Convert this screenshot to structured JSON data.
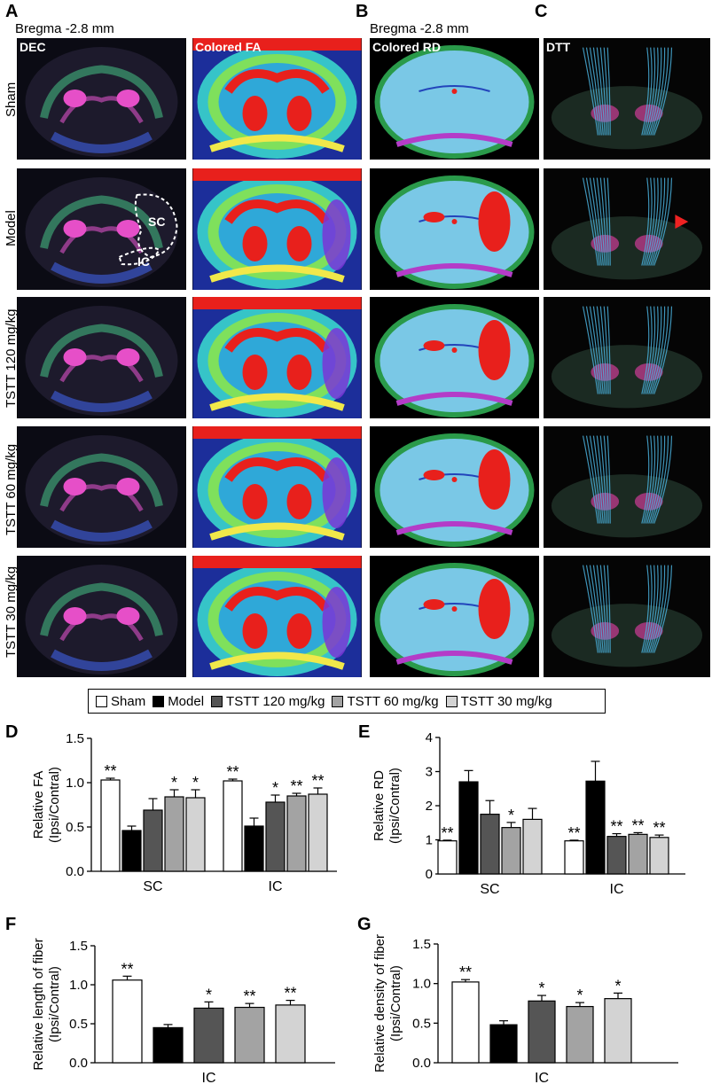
{
  "panels": {
    "A": "A",
    "B": "B",
    "C": "C",
    "D": "D",
    "E": "E",
    "F": "F",
    "G": "G"
  },
  "bregma_a": "Bregma -2.8 mm",
  "bregma_b": "Bregma -2.8 mm",
  "image_labels": {
    "dec": "DEC",
    "fa": "Colored FA",
    "rd": "Colored RD",
    "dtt": "DTT",
    "sc": "SC",
    "ic": "IC"
  },
  "rows": [
    "Sham",
    "Model",
    "TSTT 120 mg/kg",
    "TSTT 60 mg/kg",
    "TSTT 30 mg/kg"
  ],
  "legend": [
    {
      "label": "Sham",
      "color": "#ffffff"
    },
    {
      "label": "Model",
      "color": "#000000"
    },
    {
      "label": "TSTT 120 mg/kg",
      "color": "#555555"
    },
    {
      "label": "TSTT 60 mg/kg",
      "color": "#a3a3a3"
    },
    {
      "label": "TSTT 30 mg/kg",
      "color": "#d3d3d3"
    }
  ],
  "chart_data": [
    {
      "id": "D",
      "type": "bar",
      "ylabel": "Relative FA\n(Ipsi/Contral)",
      "ylim": [
        0,
        1.5
      ],
      "yticks": [
        "0.0",
        "0.5",
        "1.0",
        "1.5"
      ],
      "categories": [
        "SC",
        "IC"
      ],
      "series": [
        {
          "name": "Sham",
          "values": [
            1.03,
            1.02
          ],
          "errors": [
            0.02,
            0.02
          ],
          "sig": [
            "**",
            "**"
          ]
        },
        {
          "name": "Model",
          "values": [
            0.46,
            0.51
          ],
          "errors": [
            0.05,
            0.09
          ],
          "sig": [
            "",
            ""
          ]
        },
        {
          "name": "TSTT 120 mg/kg",
          "values": [
            0.69,
            0.78
          ],
          "errors": [
            0.13,
            0.08
          ],
          "sig": [
            "",
            "*"
          ]
        },
        {
          "name": "TSTT 60 mg/kg",
          "values": [
            0.84,
            0.85
          ],
          "errors": [
            0.08,
            0.03
          ],
          "sig": [
            "*",
            "**"
          ]
        },
        {
          "name": "TSTT 30 mg/kg",
          "values": [
            0.83,
            0.87
          ],
          "errors": [
            0.09,
            0.07
          ],
          "sig": [
            "*",
            "**"
          ]
        }
      ]
    },
    {
      "id": "E",
      "type": "bar",
      "ylabel": "Relative RD\n(Ipsi/Contral)",
      "ylim": [
        0,
        4
      ],
      "yticks": [
        "0",
        "1",
        "2",
        "3",
        "4"
      ],
      "categories": [
        "SC",
        "IC"
      ],
      "series": [
        {
          "name": "Sham",
          "values": [
            0.97,
            0.97
          ],
          "errors": [
            0.02,
            0.02
          ],
          "sig": [
            "**",
            "**"
          ]
        },
        {
          "name": "Model",
          "values": [
            2.7,
            2.72
          ],
          "errors": [
            0.33,
            0.58
          ],
          "sig": [
            "",
            ""
          ]
        },
        {
          "name": "TSTT 120 mg/kg",
          "values": [
            1.75,
            1.1
          ],
          "errors": [
            0.4,
            0.08
          ],
          "sig": [
            "",
            "**"
          ]
        },
        {
          "name": "TSTT 60 mg/kg",
          "values": [
            1.36,
            1.16
          ],
          "errors": [
            0.15,
            0.05
          ],
          "sig": [
            "*",
            "**"
          ]
        },
        {
          "name": "TSTT 30 mg/kg",
          "values": [
            1.6,
            1.07
          ],
          "errors": [
            0.32,
            0.07
          ],
          "sig": [
            "",
            "**"
          ]
        }
      ]
    },
    {
      "id": "F",
      "type": "bar",
      "ylabel": "Relative length of fiber\n(Ipsi/Contral)",
      "ylim": [
        0,
        1.5
      ],
      "yticks": [
        "0.0",
        "0.5",
        "1.0",
        "1.5"
      ],
      "categories": [
        "IC"
      ],
      "series": [
        {
          "name": "Sham",
          "values": [
            1.06
          ],
          "errors": [
            0.05
          ],
          "sig": [
            "**"
          ]
        },
        {
          "name": "Model",
          "values": [
            0.45
          ],
          "errors": [
            0.04
          ],
          "sig": [
            ""
          ]
        },
        {
          "name": "TSTT 120 mg/kg",
          "values": [
            0.7
          ],
          "errors": [
            0.08
          ],
          "sig": [
            "*"
          ]
        },
        {
          "name": "TSTT 60 mg/kg",
          "values": [
            0.71
          ],
          "errors": [
            0.05
          ],
          "sig": [
            "**"
          ]
        },
        {
          "name": "TSTT 30 mg/kg",
          "values": [
            0.74
          ],
          "errors": [
            0.06
          ],
          "sig": [
            "**"
          ]
        }
      ]
    },
    {
      "id": "G",
      "type": "bar",
      "ylabel": "Relative density of fiber\n(Ipsi/Contral)",
      "ylim": [
        0,
        1.5
      ],
      "yticks": [
        "0.0",
        "0.5",
        "1.0",
        "1.5"
      ],
      "categories": [
        "IC"
      ],
      "series": [
        {
          "name": "Sham",
          "values": [
            1.02
          ],
          "errors": [
            0.03
          ],
          "sig": [
            "**"
          ]
        },
        {
          "name": "Model",
          "values": [
            0.48
          ],
          "errors": [
            0.05
          ],
          "sig": [
            ""
          ]
        },
        {
          "name": "TSTT 120 mg/kg",
          "values": [
            0.78
          ],
          "errors": [
            0.07
          ],
          "sig": [
            "*"
          ]
        },
        {
          "name": "TSTT 60 mg/kg",
          "values": [
            0.71
          ],
          "errors": [
            0.05
          ],
          "sig": [
            "*"
          ]
        },
        {
          "name": "TSTT 30 mg/kg",
          "values": [
            0.81
          ],
          "errors": [
            0.07
          ],
          "sig": [
            "*"
          ]
        }
      ]
    }
  ]
}
